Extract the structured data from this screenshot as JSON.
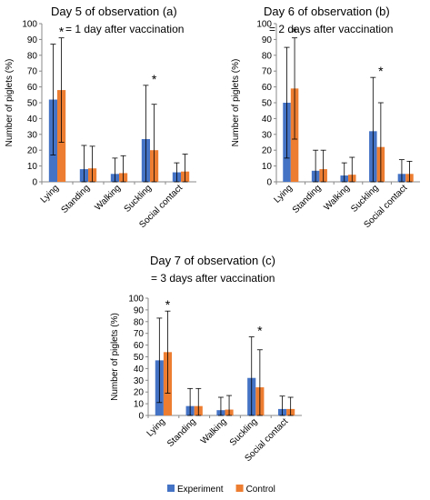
{
  "chart_data": [
    {
      "type": "bar",
      "title": "Day 5 of observation (a)",
      "subtitle": "= 1 day after vaccination",
      "xlabel": "",
      "ylabel": "Number of piglets (%)",
      "ylim": [
        0,
        100
      ],
      "yticks": [
        0,
        10,
        20,
        30,
        40,
        50,
        60,
        70,
        80,
        90,
        100
      ],
      "categories": [
        "Lying",
        "Standing",
        "Walking",
        "Suckling",
        "Social contact"
      ],
      "series": [
        {
          "name": "Experiment",
          "color": "#4472C4",
          "values": [
            52,
            8,
            5,
            27,
            6
          ],
          "error": [
            35,
            15,
            10,
            34,
            6
          ]
        },
        {
          "name": "Control",
          "color": "#ED7D31",
          "values": [
            58,
            8.5,
            5.5,
            20,
            6.5
          ],
          "error": [
            33,
            14,
            11,
            29,
            11
          ]
        }
      ],
      "annotations": [
        {
          "category": "Lying",
          "text": "*"
        },
        {
          "category": "Suckling",
          "text": "*"
        }
      ],
      "grid": false
    },
    {
      "type": "bar",
      "title": "Day 6 of observation (b)",
      "subtitle": "= 2 days after vaccination",
      "xlabel": "",
      "ylabel": "Number of piglets (%)",
      "ylim": [
        0,
        100
      ],
      "yticks": [
        0,
        10,
        20,
        30,
        40,
        50,
        60,
        70,
        80,
        90,
        100
      ],
      "categories": [
        "Lying",
        "Standing",
        "Walking",
        "Suckling",
        "Social contact"
      ],
      "series": [
        {
          "name": "Experiment",
          "color": "#4472C4",
          "values": [
            50,
            7,
            4,
            32,
            5
          ],
          "error": [
            35,
            13,
            8,
            34,
            9
          ]
        },
        {
          "name": "Control",
          "color": "#ED7D31",
          "values": [
            59,
            8,
            4.5,
            22,
            5
          ],
          "error": [
            32,
            12,
            11,
            28,
            8
          ]
        }
      ],
      "annotations": [
        {
          "category": "Lying",
          "text": "*"
        },
        {
          "category": "Suckling",
          "text": "*"
        }
      ],
      "grid": false
    },
    {
      "type": "bar",
      "title": "Day 7 of observation (c)",
      "subtitle": "= 3 days after vaccination",
      "xlabel": "",
      "ylabel": "Number of piglets (%)",
      "ylim": [
        0,
        100
      ],
      "yticks": [
        0,
        10,
        20,
        30,
        40,
        50,
        60,
        70,
        80,
        90,
        100
      ],
      "categories": [
        "Lying",
        "Standing",
        "Walking",
        "Suckling",
        "Social contact"
      ],
      "series": [
        {
          "name": "Experiment",
          "color": "#4472C4",
          "values": [
            47,
            8,
            4.5,
            32,
            5.5
          ],
          "error": [
            36,
            15,
            11,
            35,
            11
          ]
        },
        {
          "name": "Control",
          "color": "#ED7D31",
          "values": [
            54,
            8,
            5,
            24,
            5.5
          ],
          "error": [
            35,
            15,
            12,
            32,
            10
          ]
        }
      ],
      "annotations": [
        {
          "category": "Lying",
          "text": "*"
        },
        {
          "category": "Suckling",
          "text": "*"
        }
      ],
      "grid": false
    }
  ],
  "legend": {
    "position": "bottom",
    "items": [
      {
        "label": "Experiment",
        "color": "#4472C4"
      },
      {
        "label": "Control",
        "color": "#ED7D31"
      }
    ]
  }
}
